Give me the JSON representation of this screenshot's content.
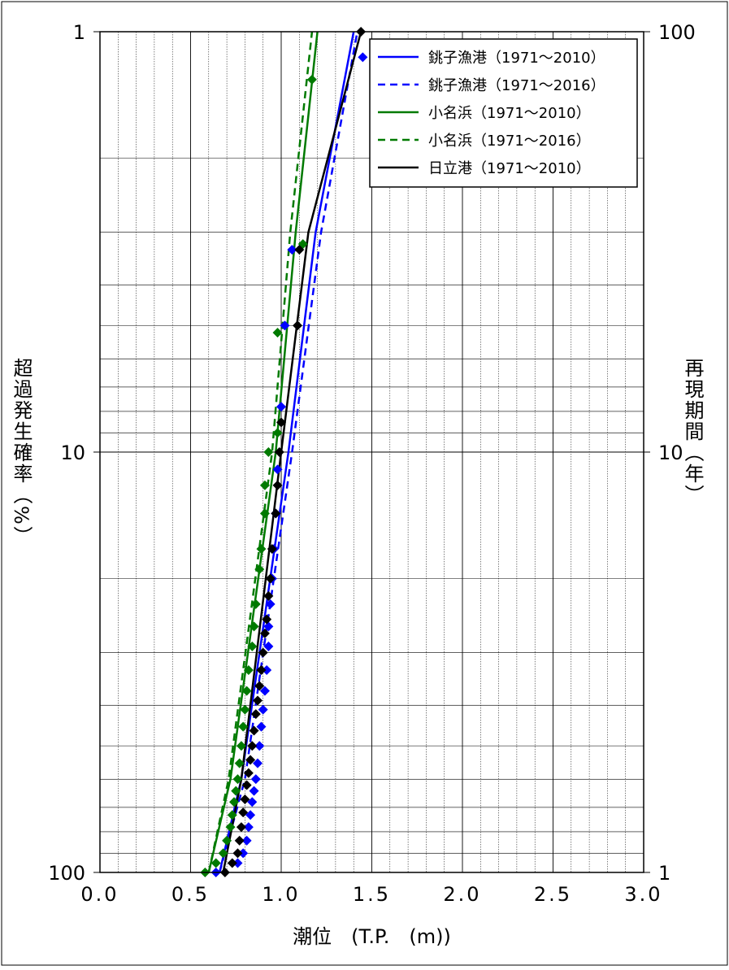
{
  "chart_data": {
    "type": "scatter",
    "title": "",
    "xlabel": "潮位　(T.P.　(m))",
    "ylabel_left": "超過発生確率（%）",
    "ylabel_right": "再現期間（年）",
    "xlim": [
      0.0,
      3.0
    ],
    "y_scale": "log",
    "ylim_probability_percent": [
      100,
      1
    ],
    "ylim_return_period_years": [
      1,
      100
    ],
    "x_ticks": [
      "0.0",
      "0.5",
      "1.0",
      "1.5",
      "2.0",
      "2.5",
      "3.0"
    ],
    "y_ticks_left": [
      "1",
      "10",
      "100"
    ],
    "y_ticks_right": [
      "100",
      "10",
      "1"
    ],
    "grid": true,
    "legend_position": "top-right",
    "series": [
      {
        "name": "銚子漁港（1971～2010）",
        "color": "#0000ff",
        "line_style": "solid",
        "fit_line": [
          [
            0.66,
            100
          ],
          [
            0.78,
            60
          ],
          [
            1.04,
            10
          ],
          [
            1.19,
            3.0
          ],
          [
            1.4,
            1
          ]
        ],
        "points": []
      },
      {
        "name": "銚子漁港（1971～2016）",
        "color": "#0000ff",
        "line_style": "dashed",
        "fit_line": [
          [
            0.66,
            100
          ],
          [
            0.8,
            60
          ],
          [
            1.06,
            10
          ],
          [
            1.22,
            3.0
          ],
          [
            1.42,
            1
          ]
        ],
        "points": [
          [
            1.45,
            1.15
          ],
          [
            1.06,
            3.3
          ],
          [
            1.02,
            5.0
          ],
          [
            1.0,
            7.8
          ],
          [
            0.98,
            11.0
          ],
          [
            0.97,
            14.0
          ],
          [
            0.96,
            17.0
          ],
          [
            0.95,
            20.0
          ],
          [
            0.94,
            23.0
          ],
          [
            0.93,
            26.0
          ],
          [
            0.93,
            29.0
          ],
          [
            0.92,
            33.0
          ],
          [
            0.91,
            37.0
          ],
          [
            0.9,
            41.0
          ],
          [
            0.89,
            45.0
          ],
          [
            0.88,
            50.0
          ],
          [
            0.87,
            55.0
          ],
          [
            0.86,
            60.0
          ],
          [
            0.85,
            64.0
          ],
          [
            0.84,
            68.0
          ],
          [
            0.83,
            73.0
          ],
          [
            0.82,
            78.0
          ],
          [
            0.81,
            84.0
          ],
          [
            0.79,
            90.0
          ],
          [
            0.76,
            95.0
          ],
          [
            0.64,
            100.0
          ]
        ]
      },
      {
        "name": "小名浜（1971～2010）",
        "color": "#007a00",
        "line_style": "solid",
        "fit_line": [
          [
            0.6,
            100
          ],
          [
            0.72,
            60
          ],
          [
            0.97,
            10
          ],
          [
            1.08,
            3.0
          ],
          [
            1.2,
            1
          ]
        ],
        "points": []
      },
      {
        "name": "小名浜（1971～2016）",
        "color": "#007a00",
        "line_style": "dashed",
        "fit_line": [
          [
            0.6,
            100
          ],
          [
            0.71,
            60
          ],
          [
            0.95,
            10
          ],
          [
            1.05,
            3.0
          ],
          [
            1.17,
            1
          ]
        ],
        "points": [
          [
            1.17,
            1.3
          ],
          [
            1.12,
            3.2
          ],
          [
            0.98,
            5.2
          ],
          [
            0.98,
            9.0
          ],
          [
            0.93,
            10.0
          ],
          [
            0.91,
            12.0
          ],
          [
            0.91,
            14.0
          ],
          [
            0.89,
            17.0
          ],
          [
            0.88,
            19.0
          ],
          [
            0.86,
            23.0
          ],
          [
            0.85,
            26.0
          ],
          [
            0.84,
            29.0
          ],
          [
            0.82,
            33.0
          ],
          [
            0.81,
            37.0
          ],
          [
            0.8,
            41.0
          ],
          [
            0.79,
            45.0
          ],
          [
            0.78,
            50.0
          ],
          [
            0.77,
            55.0
          ],
          [
            0.76,
            60.0
          ],
          [
            0.75,
            64.0
          ],
          [
            0.74,
            68.0
          ],
          [
            0.73,
            73.0
          ],
          [
            0.72,
            78.0
          ],
          [
            0.7,
            84.0
          ],
          [
            0.68,
            90.0
          ],
          [
            0.64,
            95.0
          ],
          [
            0.58,
            100.0
          ]
        ]
      },
      {
        "name": "日立港（1971～2010）",
        "color": "#000000",
        "line_style": "solid",
        "fit_line": [
          [
            0.68,
            100
          ],
          [
            0.78,
            60
          ],
          [
            1.0,
            10
          ],
          [
            1.15,
            3.0
          ],
          [
            1.44,
            1
          ]
        ],
        "points": [
          [
            1.44,
            1.0
          ],
          [
            1.1,
            3.3
          ],
          [
            1.09,
            5.0
          ],
          [
            1.0,
            8.5
          ],
          [
            0.99,
            10.0
          ],
          [
            0.98,
            12.0
          ],
          [
            0.97,
            14.0
          ],
          [
            0.95,
            17.0
          ],
          [
            0.94,
            20.0
          ],
          [
            0.93,
            22.0
          ],
          [
            0.92,
            25.0
          ],
          [
            0.91,
            27.0
          ],
          [
            0.9,
            30.0
          ],
          [
            0.89,
            33.0
          ],
          [
            0.88,
            36.0
          ],
          [
            0.87,
            39.0
          ],
          [
            0.86,
            42.0
          ],
          [
            0.85,
            46.0
          ],
          [
            0.84,
            50.0
          ],
          [
            0.83,
            54.0
          ],
          [
            0.82,
            58.0
          ],
          [
            0.81,
            62.0
          ],
          [
            0.8,
            67.0
          ],
          [
            0.79,
            72.0
          ],
          [
            0.78,
            78.0
          ],
          [
            0.77,
            84.0
          ],
          [
            0.76,
            90.0
          ],
          [
            0.73,
            95.0
          ],
          [
            0.69,
            100.0
          ]
        ]
      }
    ]
  }
}
